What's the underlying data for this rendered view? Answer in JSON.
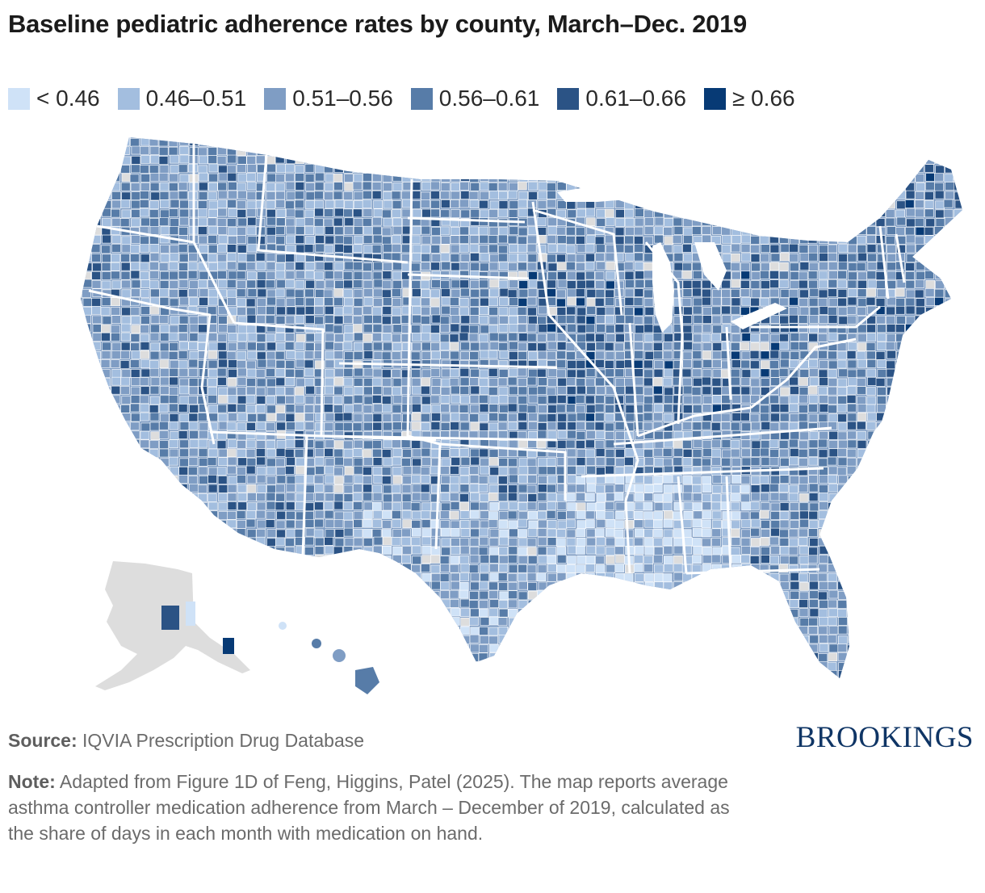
{
  "title": "Baseline pediatric adherence rates by county, March–Dec. 2019",
  "legend": [
    {
      "label": "< 0.46",
      "color": "#cfe2f7"
    },
    {
      "label": "0.46–0.51",
      "color": "#a3bedf"
    },
    {
      "label": "0.51–0.56",
      "color": "#7f9dc4"
    },
    {
      "label": "0.56–0.61",
      "color": "#577ca8"
    },
    {
      "label": "0.61–0.66",
      "color": "#2b5385"
    },
    {
      "label": "≥ 0.66",
      "color": "#073a75"
    }
  ],
  "no_data_color": "#dddddd",
  "source": {
    "label": "Source:",
    "text": "IQVIA Prescription Drug Database"
  },
  "note": {
    "label": "Note:",
    "text": "Adapted from Figure 1D of Feng, Higgins, Patel (2025). The map reports average asthma controller medication adherence from March – December of 2019, calculated as the share of days in each month with medication on hand."
  },
  "brand": "BROOKINGS"
}
